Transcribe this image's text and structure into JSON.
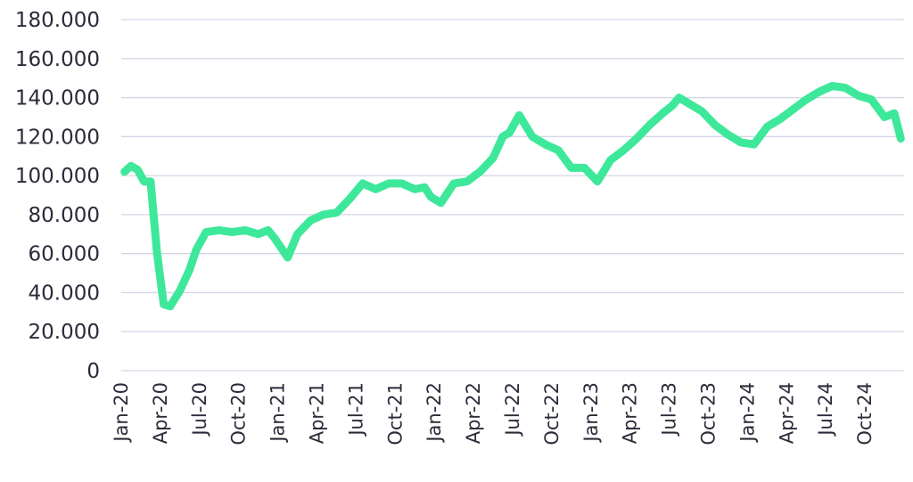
{
  "chart_data": {
    "type": "line",
    "title": "",
    "xlabel": "",
    "ylabel": "",
    "ylim": [
      0,
      180000
    ],
    "y_tick_values": [
      0,
      20000,
      40000,
      60000,
      80000,
      100000,
      120000,
      140000,
      160000,
      180000
    ],
    "y_tick_labels": [
      "0",
      "20.000",
      "40.000",
      "60.000",
      "80.000",
      "100.000",
      "120.000",
      "140.000",
      "160.000",
      "180.000"
    ],
    "x_tick_labels": [
      "Jan-20",
      "Apr-20",
      "Jul-20",
      "Oct-20",
      "Jan-21",
      "Apr-21",
      "Jul-21",
      "Oct-21",
      "Jan-22",
      "Apr-22",
      "Jul-22",
      "Oct-22",
      "Jan-23",
      "Apr-23",
      "Jul-23",
      "Oct-23",
      "Jan-24",
      "Apr-24",
      "Jul-24",
      "Oct-24"
    ],
    "x_range": [
      "2020-01",
      "2024-12"
    ],
    "grid": "horizontal",
    "legend": "none",
    "series": [
      {
        "color": "#3ee89a",
        "points": [
          [
            "2020-01",
            102000
          ],
          [
            "2020-01",
            105000
          ],
          [
            "2020-02",
            103000
          ],
          [
            "2020-02",
            97000
          ],
          [
            "2020-03",
            97000
          ],
          [
            "2020-03",
            60000
          ],
          [
            "2020-04",
            34000
          ],
          [
            "2020-04",
            33000
          ],
          [
            "2020-05",
            41000
          ],
          [
            "2020-06",
            52000
          ],
          [
            "2020-06",
            62000
          ],
          [
            "2020-07",
            71000
          ],
          [
            "2020-08",
            72000
          ],
          [
            "2020-09",
            71000
          ],
          [
            "2020-10",
            72000
          ],
          [
            "2020-11",
            70000
          ],
          [
            "2020-12",
            72000
          ],
          [
            "2020-12",
            68000
          ],
          [
            "2021-01",
            63000
          ],
          [
            "2021-01",
            58000
          ],
          [
            "2021-02",
            70000
          ],
          [
            "2021-03",
            77000
          ],
          [
            "2021-04",
            80000
          ],
          [
            "2021-05",
            81000
          ],
          [
            "2021-06",
            88000
          ],
          [
            "2021-07",
            96000
          ],
          [
            "2021-08",
            93000
          ],
          [
            "2021-09",
            96000
          ],
          [
            "2021-10",
            96000
          ],
          [
            "2021-11",
            93000
          ],
          [
            "2021-12",
            94000
          ],
          [
            "2021-12",
            89000
          ],
          [
            "2022-01",
            86000
          ],
          [
            "2022-02",
            96000
          ],
          [
            "2022-03",
            97000
          ],
          [
            "2022-04",
            102000
          ],
          [
            "2022-05",
            109000
          ],
          [
            "2022-06",
            120000
          ],
          [
            "2022-06",
            122000
          ],
          [
            "2022-07",
            131000
          ],
          [
            "2022-08",
            120000
          ],
          [
            "2022-09",
            116000
          ],
          [
            "2022-10",
            113000
          ],
          [
            "2022-11",
            104000
          ],
          [
            "2022-12",
            104000
          ],
          [
            "2023-01",
            97000
          ],
          [
            "2023-02",
            108000
          ],
          [
            "2023-03",
            113000
          ],
          [
            "2023-04",
            119000
          ],
          [
            "2023-05",
            126000
          ],
          [
            "2023-06",
            132000
          ],
          [
            "2023-07",
            136000
          ],
          [
            "2023-07",
            140000
          ],
          [
            "2023-08",
            137000
          ],
          [
            "2023-09",
            133000
          ],
          [
            "2023-10",
            126000
          ],
          [
            "2023-11",
            121000
          ],
          [
            "2023-12",
            117000
          ],
          [
            "2024-01",
            116000
          ],
          [
            "2024-02",
            125000
          ],
          [
            "2024-03",
            129000
          ],
          [
            "2024-04",
            134000
          ],
          [
            "2024-05",
            139000
          ],
          [
            "2024-06",
            143000
          ],
          [
            "2024-07",
            146000
          ],
          [
            "2024-08",
            145000
          ],
          [
            "2024-09",
            141000
          ],
          [
            "2024-10",
            139000
          ],
          [
            "2024-11",
            130000
          ],
          [
            "2024-12",
            132000
          ],
          [
            "2024-12",
            119000
          ]
        ]
      }
    ]
  }
}
